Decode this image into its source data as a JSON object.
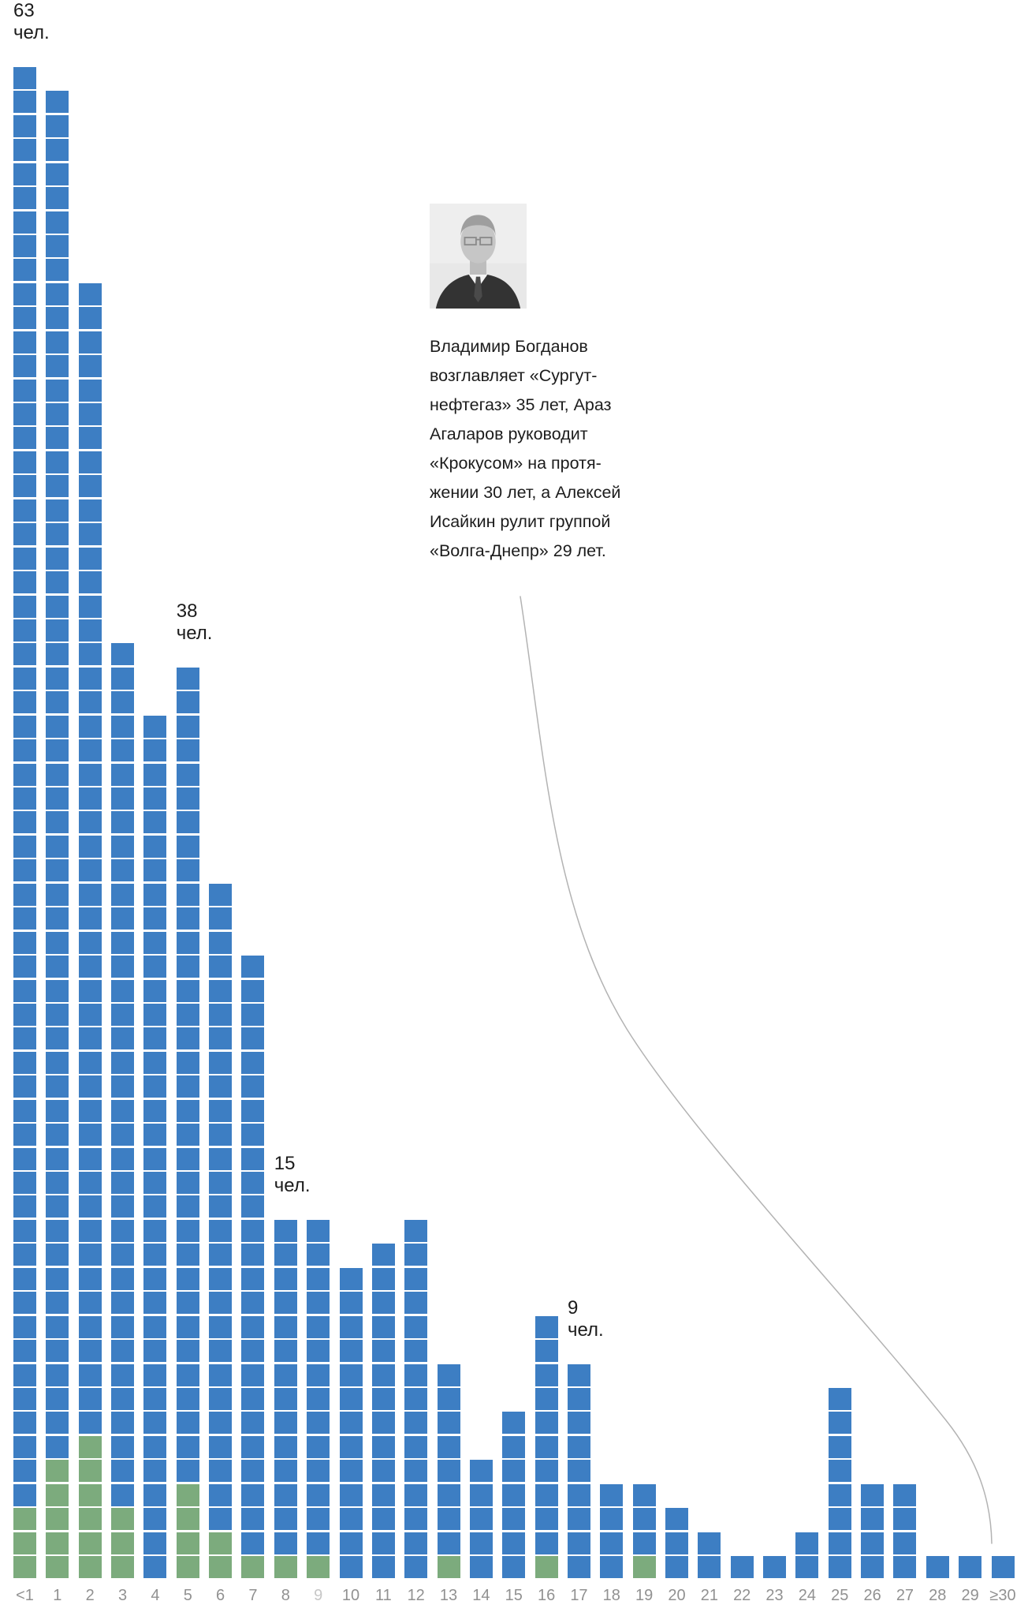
{
  "chart_data": {
    "type": "bar",
    "subtype": "unit-waffle-columns",
    "title": "",
    "unit": "чел.",
    "xlabel": "",
    "ylabel": "",
    "ylim": [
      0,
      63
    ],
    "grid": false,
    "legend": "none",
    "categories": [
      "<1",
      "1",
      "2",
      "3",
      "4",
      "5",
      "6",
      "7",
      "8",
      "9",
      "10",
      "11",
      "12",
      "13",
      "14",
      "15",
      "16",
      "17",
      "18",
      "19",
      "20",
      "21",
      "22",
      "23",
      "24",
      "25",
      "26",
      "27",
      "28",
      "29",
      "≥30"
    ],
    "totals": [
      63,
      62,
      54,
      39,
      36,
      38,
      29,
      26,
      15,
      15,
      13,
      14,
      15,
      9,
      5,
      7,
      11,
      9,
      4,
      4,
      3,
      2,
      1,
      1,
      2,
      8,
      4,
      4,
      1,
      1,
      1
    ],
    "series": [
      {
        "name": "green-bottom-segment",
        "color": "#7cab7d",
        "values": [
          3,
          5,
          6,
          3,
          0,
          4,
          2,
          1,
          1,
          1,
          0,
          0,
          0,
          1,
          0,
          0,
          1,
          0,
          0,
          1,
          0,
          0,
          0,
          0,
          0,
          0,
          0,
          0,
          0,
          0,
          0
        ]
      },
      {
        "name": "blue-top-segment",
        "color": "#3d7ec3",
        "values": [
          60,
          57,
          48,
          36,
          36,
          34,
          27,
          25,
          14,
          14,
          13,
          14,
          15,
          8,
          5,
          7,
          10,
          9,
          4,
          3,
          3,
          2,
          1,
          1,
          2,
          8,
          4,
          4,
          1,
          1,
          1
        ]
      }
    ],
    "annotations": [
      {
        "index": 0,
        "value": "63",
        "unit": "чел."
      },
      {
        "index": 5,
        "value": "38",
        "unit": "чел."
      },
      {
        "index": 8,
        "value": "15",
        "unit": "чел."
      },
      {
        "index": 17,
        "value": "9",
        "unit": "чел."
      }
    ],
    "muted_label_index": 9
  },
  "callout": {
    "text": "Владимир Богданов\nвозглавляет «Сургут-\nнефтегаз» 35 лет, Араз\nАгаларов руководит\n«Крокусом» на протя-\nжении 30 лет, а Алексей\nИсайкин рулит группой\n«Волга-Днепр» 29 лет."
  },
  "colors": {
    "blue": "#3d7ec3",
    "green": "#7cab7d",
    "axis_label": "#919191",
    "axis_label_muted": "#c7c7c7",
    "text": "#1c1c1c",
    "curve": "#b3b3b3",
    "background": "#ffffff"
  }
}
